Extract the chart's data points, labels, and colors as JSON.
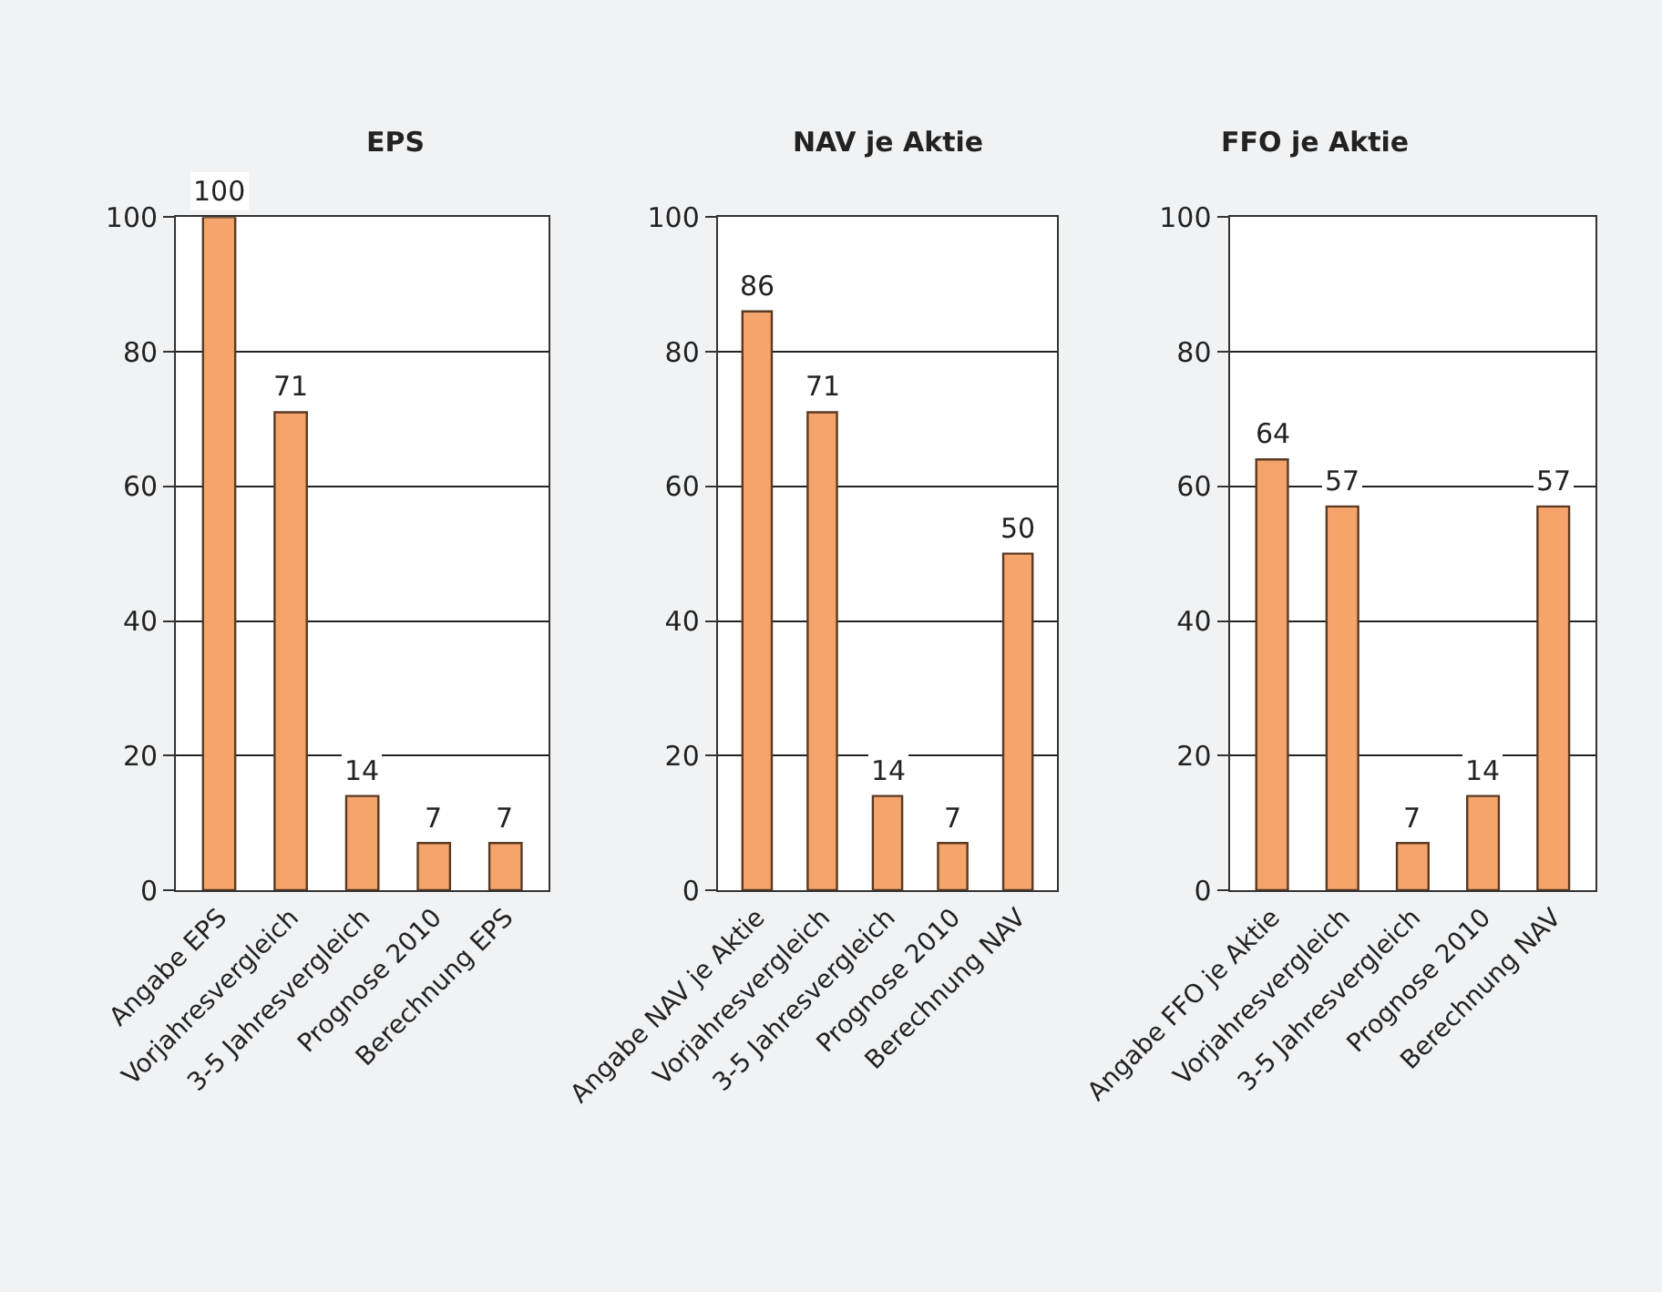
{
  "chart_data": [
    {
      "type": "bar",
      "title": "EPS",
      "categories": [
        "Angabe EPS",
        "Vorjahresvergleich",
        "3-5 Jahresvergleich",
        "Prognose 2010",
        "Berechnung EPS"
      ],
      "values": [
        100,
        71,
        14,
        7,
        7
      ],
      "color": "#f5a46c",
      "ylim": [
        0,
        100
      ],
      "yticks": [
        0,
        20,
        40,
        60,
        80,
        100
      ],
      "grid": "y",
      "data_labels": true
    },
    {
      "type": "bar",
      "title": "NAV je Aktie",
      "categories": [
        "Angabe NAV je Aktie",
        "Vorjahresvergleich",
        "3-5 Jahresvergleich",
        "Prognose 2010",
        "Berechnung NAV"
      ],
      "values": [
        86,
        71,
        14,
        7,
        50
      ],
      "color": "#f5a46c",
      "ylim": [
        0,
        100
      ],
      "yticks": [
        0,
        20,
        40,
        60,
        80,
        100
      ],
      "grid": "y",
      "data_labels": true
    },
    {
      "type": "bar",
      "title": "FFO je Aktie",
      "categories": [
        "Angabe FFO je Aktie",
        "Vorjahresvergleich",
        "3-5 Jahresvergleich",
        "Prognose 2010",
        "Berechnung NAV"
      ],
      "values": [
        64,
        57,
        7,
        14,
        57
      ],
      "color": "#f5a46c",
      "ylim": [
        0,
        100
      ],
      "yticks": [
        0,
        20,
        40,
        60,
        80,
        100
      ],
      "grid": "y",
      "data_labels": true
    }
  ]
}
